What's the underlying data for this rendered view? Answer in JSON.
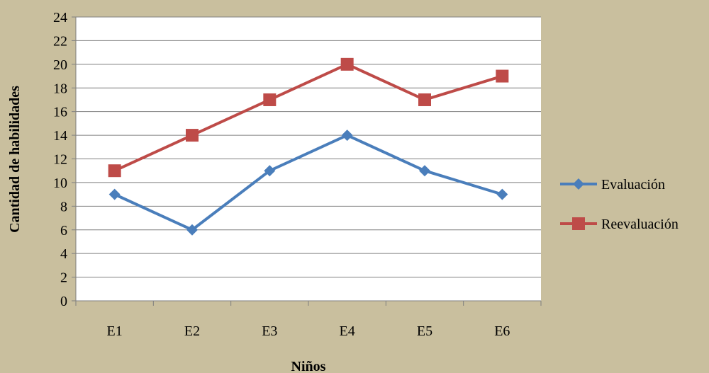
{
  "chart_data": {
    "type": "line",
    "title": "",
    "xlabel": "Niños",
    "ylabel": "Cantidad de habilidades",
    "categories": [
      "E1",
      "E2",
      "E3",
      "E4",
      "E5",
      "E6"
    ],
    "ylim": [
      0,
      24
    ],
    "yticks": [
      0,
      2,
      4,
      6,
      8,
      10,
      12,
      14,
      16,
      18,
      20,
      22,
      24
    ],
    "grid": "horizontal",
    "legend": "right",
    "series": [
      {
        "name": "Evaluación",
        "values": [
          9,
          6,
          11,
          14,
          11,
          9
        ],
        "color": "#4a7ebb",
        "marker": "diamond"
      },
      {
        "name": "Reevaluación",
        "values": [
          11,
          14,
          17,
          20,
          17,
          19
        ],
        "color": "#be4b48",
        "marker": "square"
      }
    ]
  }
}
